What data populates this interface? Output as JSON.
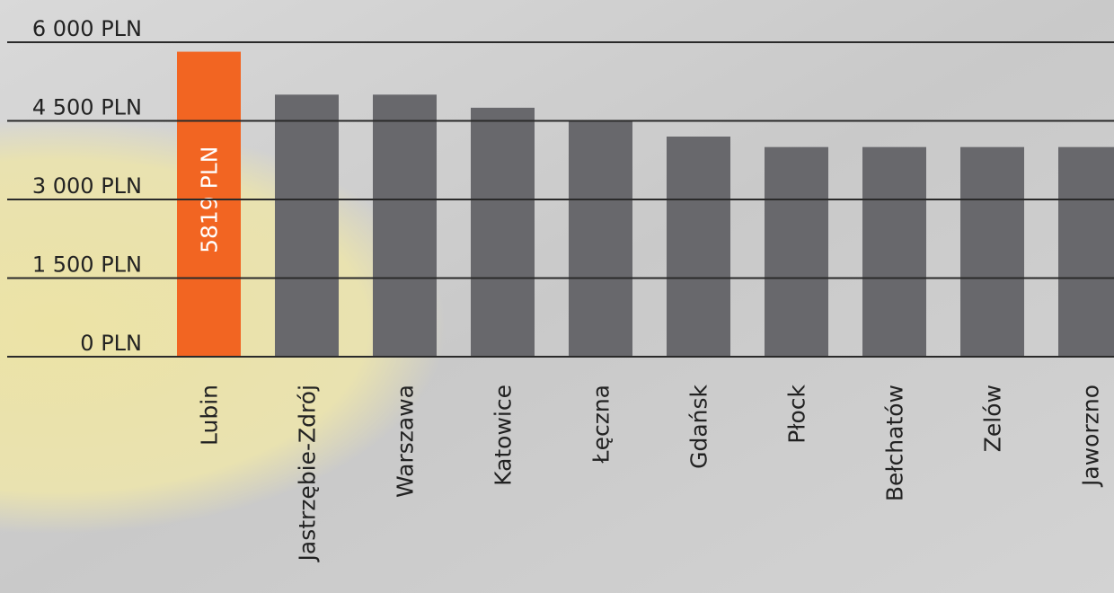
{
  "chart_data": {
    "type": "bar",
    "categories": [
      "Lubin",
      "Jastrzębie-Zdrój",
      "Warszawa",
      "Katowice",
      "Łęczna",
      "Gdańsk",
      "Płock",
      "Bełchatów",
      "Zelów",
      "Jaworzno"
    ],
    "values": [
      5819,
      5000,
      5000,
      4750,
      4500,
      4200,
      4000,
      4000,
      4000,
      4000
    ],
    "value_labels": [
      "5819 PLN",
      null,
      null,
      null,
      null,
      null,
      null,
      null,
      null,
      null
    ],
    "colors": [
      "#f26522",
      "#68686c",
      "#68686c",
      "#68686c",
      "#68686c",
      "#68686c",
      "#68686c",
      "#68686c",
      "#68686c",
      "#68686c"
    ],
    "ylim": [
      0,
      6000
    ],
    "yticks": [
      {
        "value": 0,
        "label": "0 PLN"
      },
      {
        "value": 1500,
        "label": "1 500 PLN"
      },
      {
        "value": 3000,
        "label": "3 000 PLN"
      },
      {
        "value": 4500,
        "label": "4 500 PLN"
      },
      {
        "value": 6000,
        "label": "6 000 PLN"
      }
    ],
    "grid": true
  }
}
